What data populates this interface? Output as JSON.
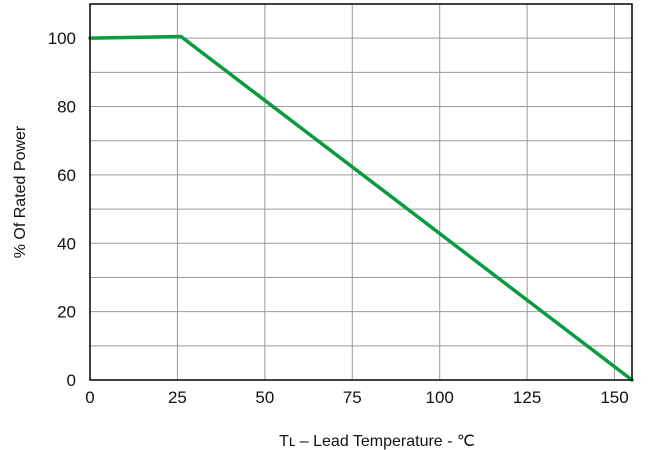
{
  "chart_data": {
    "type": "line",
    "title": "",
    "xlabel": "Tʟ – Lead Temperature - ℃",
    "ylabel": "% Of Rated Power",
    "xlim": [
      0,
      155
    ],
    "ylim": [
      0,
      110
    ],
    "x_ticks": [
      0,
      25,
      50,
      75,
      100,
      125,
      150
    ],
    "y_ticks": [
      0,
      20,
      40,
      60,
      80,
      100
    ],
    "grid": true,
    "series": [
      {
        "x": [
          0,
          26,
          155
        ],
        "y": [
          100,
          100.5,
          0
        ],
        "color": "#0a9a3f"
      }
    ]
  }
}
